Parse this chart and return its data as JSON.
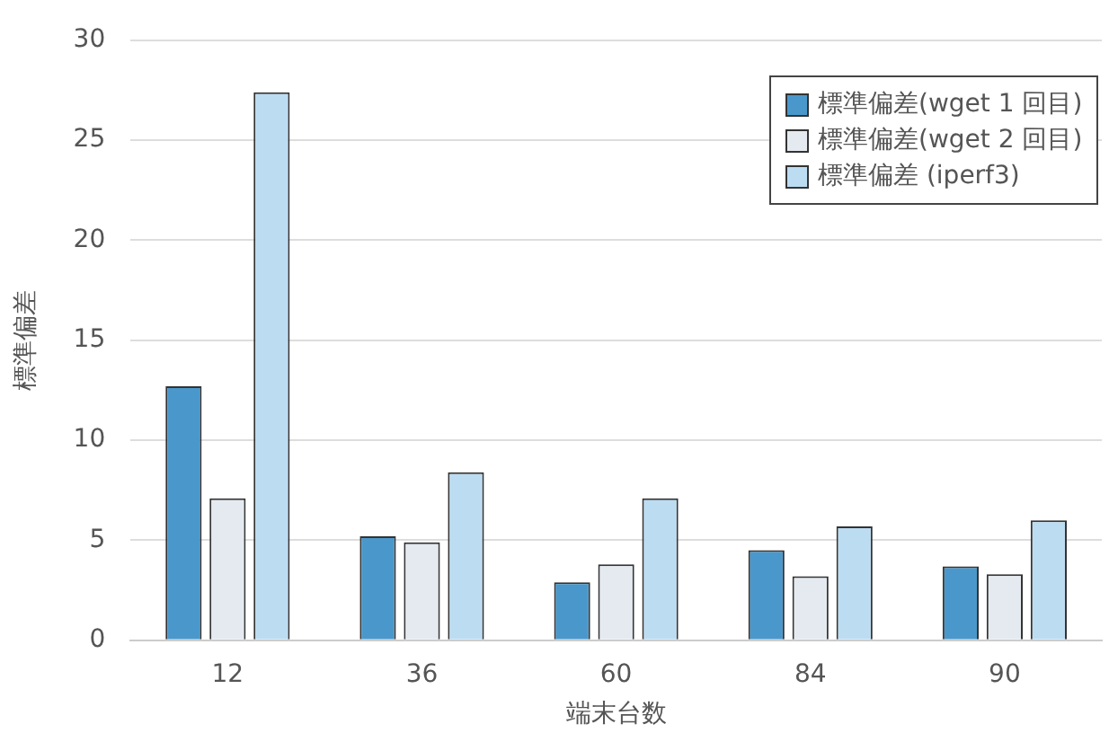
{
  "chart_data": {
    "type": "bar",
    "xlabel": "端末台数",
    "ylabel": "標準偏差",
    "categories": [
      "12",
      "36",
      "60",
      "84",
      "90"
    ],
    "series": [
      {
        "name": "標準偏差(wget 1 回目)",
        "color": "#4a98cb",
        "values": [
          12.7,
          5.2,
          2.9,
          4.5,
          3.7
        ]
      },
      {
        "name": "標準偏差(wget 2 回目)",
        "color": "#e4eaf0",
        "values": [
          7.1,
          4.9,
          3.8,
          3.2,
          3.3
        ]
      },
      {
        "name": "標準偏差 (iperf3)",
        "color": "#bcdcf2",
        "values": [
          27.4,
          8.4,
          7.1,
          5.7,
          6.0
        ]
      }
    ],
    "ylim": [
      0,
      30
    ],
    "yticks": [
      0,
      5,
      10,
      15,
      20,
      25,
      30
    ],
    "grid": "y",
    "legend": "top right"
  }
}
